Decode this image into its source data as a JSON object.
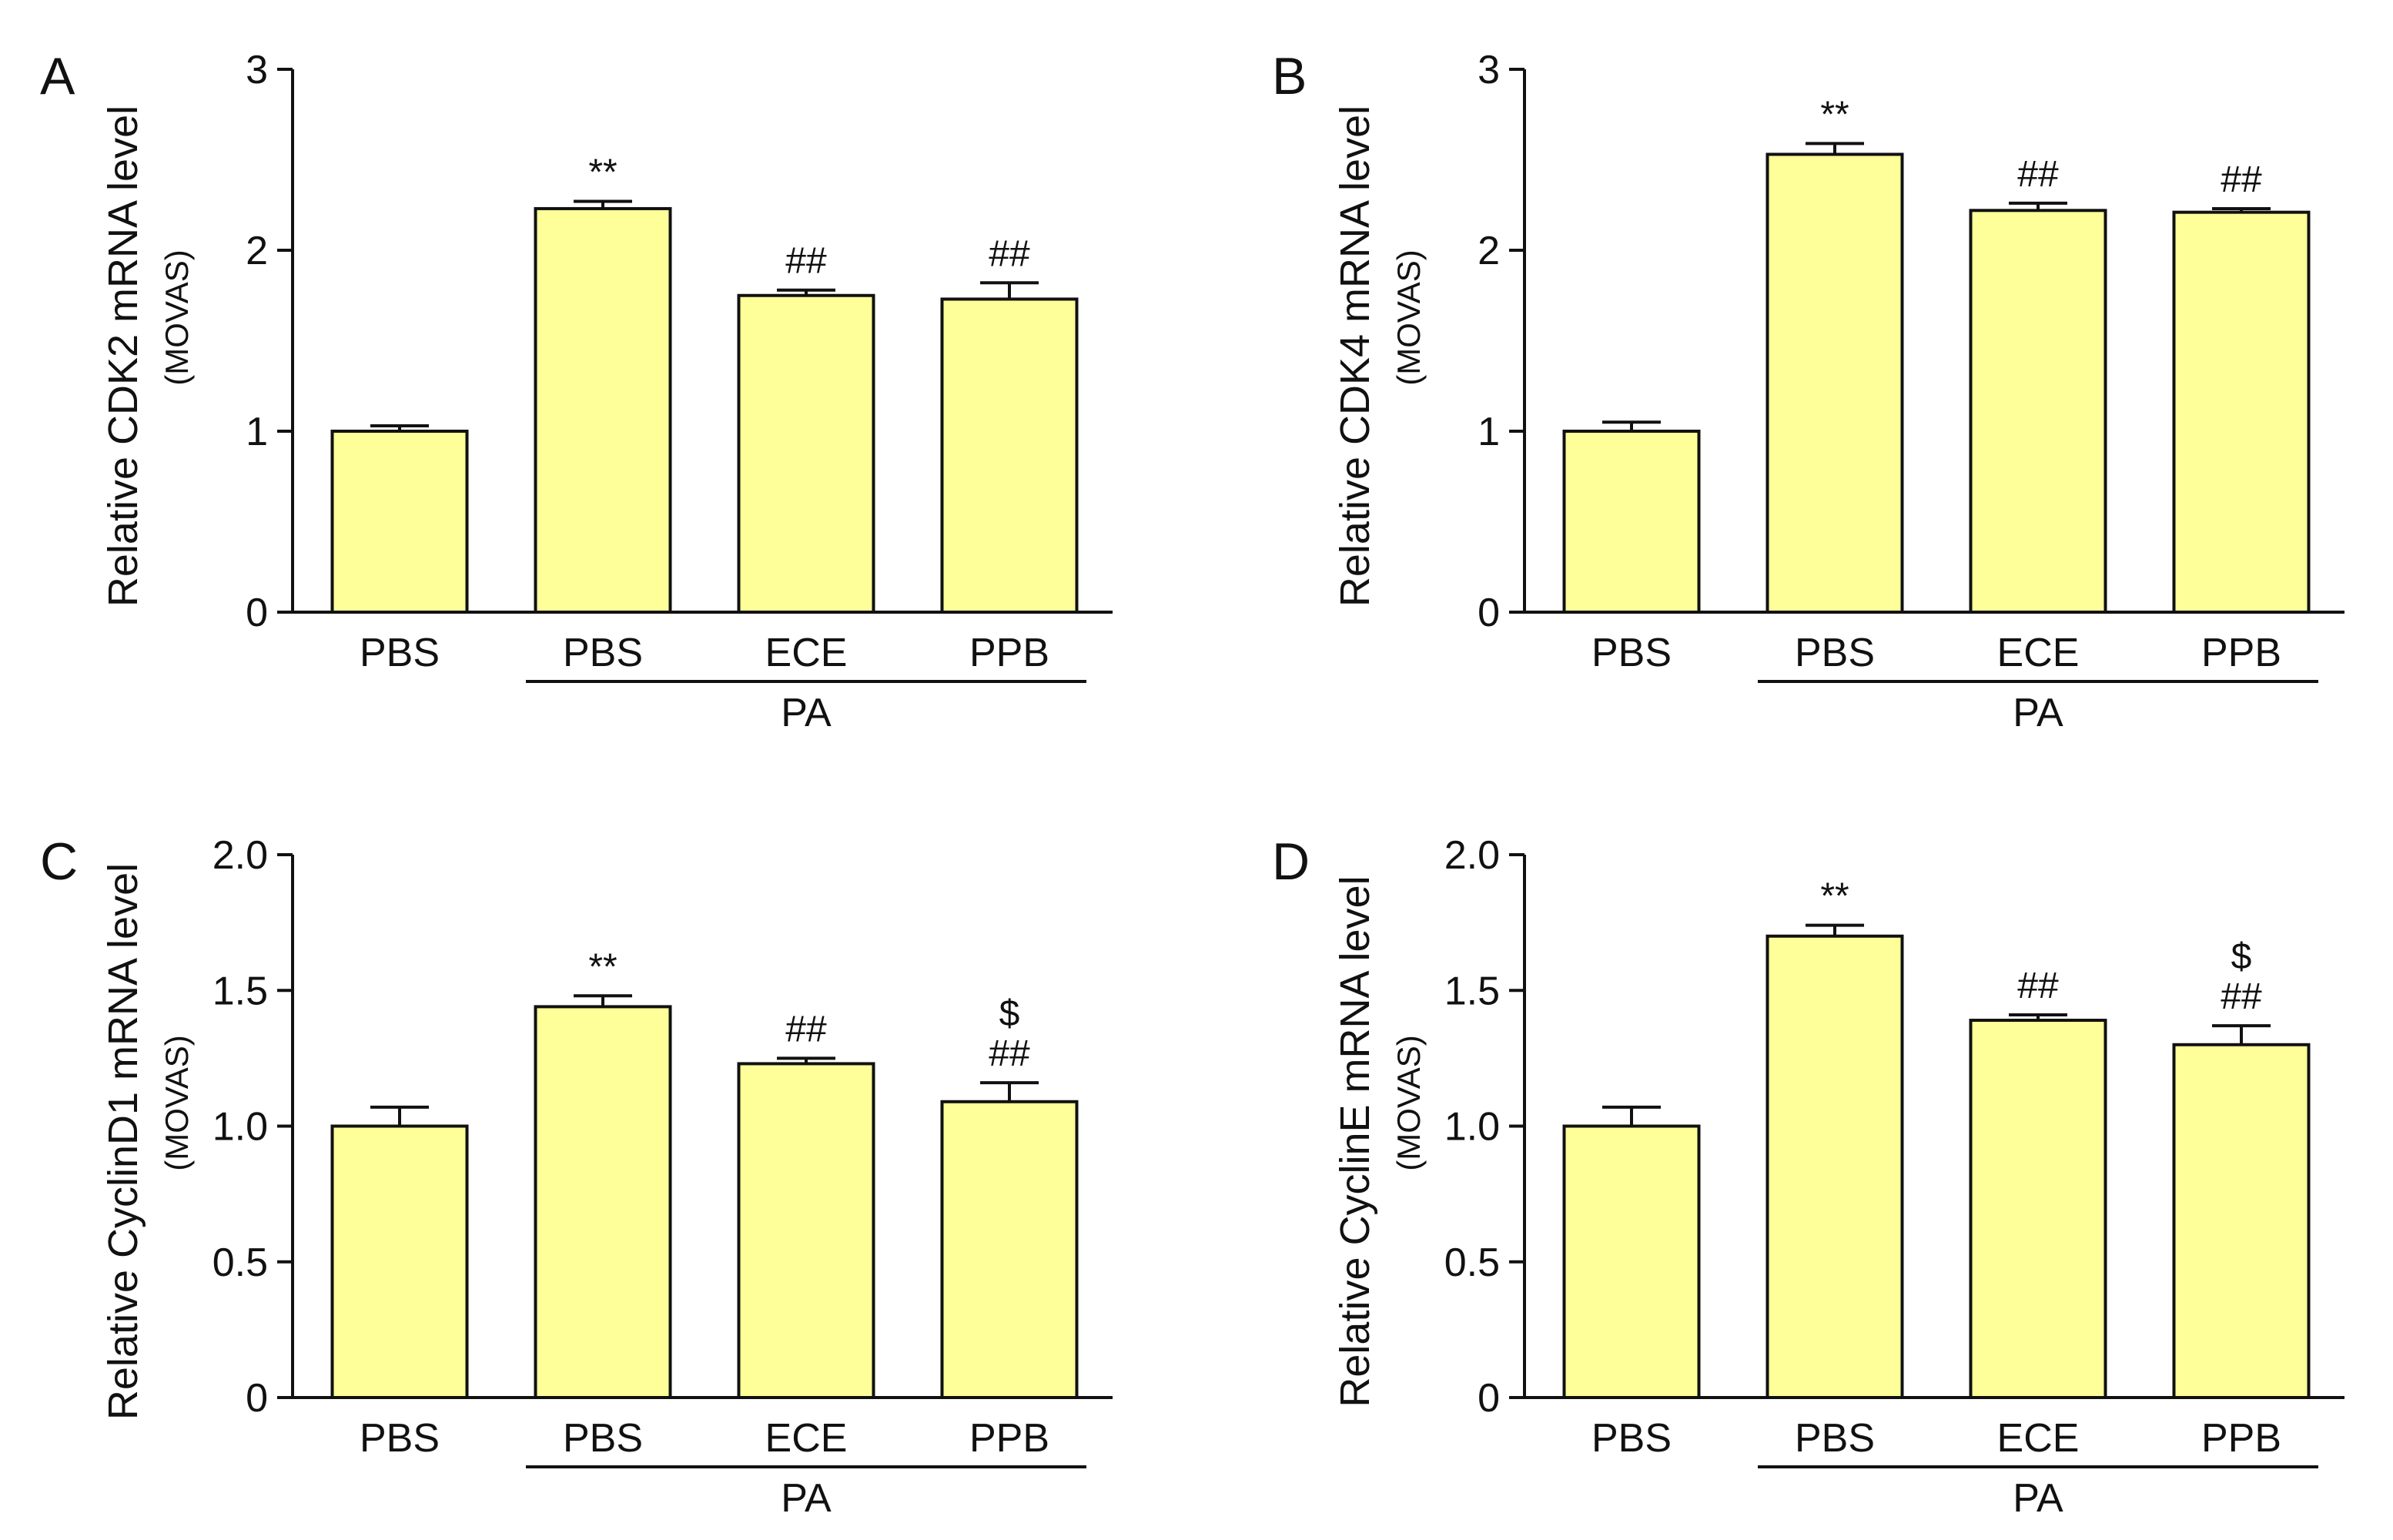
{
  "colors": {
    "bar_fill": "#ffff99",
    "bar_stroke": "#111111",
    "axis": "#111111"
  },
  "chart_data": [
    {
      "type": "bar",
      "panel": "A",
      "ylabel": "Relative CDK2 mRNA level",
      "ylabel_sub": "(MOVAS)",
      "categories": [
        "PBS",
        "PBS",
        "ECE",
        "PPB"
      ],
      "values": [
        1.0,
        2.23,
        1.75,
        1.73
      ],
      "errors": [
        0.03,
        0.04,
        0.03,
        0.09
      ],
      "annotations": [
        [],
        [
          "**"
        ],
        [
          "##"
        ],
        [
          "##"
        ]
      ],
      "group": {
        "label": "PA",
        "categories": [
          1,
          2,
          3
        ]
      },
      "ylim": [
        0,
        3
      ],
      "yticks": [
        0,
        1,
        2,
        3
      ],
      "ytick_labels": [
        "0",
        "1",
        "2",
        "3"
      ]
    },
    {
      "type": "bar",
      "panel": "B",
      "ylabel": "Relative CDK4 mRNA level",
      "ylabel_sub": "(MOVAS)",
      "categories": [
        "PBS",
        "PBS",
        "ECE",
        "PPB"
      ],
      "values": [
        1.0,
        2.53,
        2.22,
        2.21
      ],
      "errors": [
        0.05,
        0.06,
        0.04,
        0.02
      ],
      "annotations": [
        [],
        [
          "**"
        ],
        [
          "##"
        ],
        [
          "##"
        ]
      ],
      "group": {
        "label": "PA",
        "categories": [
          1,
          2,
          3
        ]
      },
      "ylim": [
        0,
        3
      ],
      "yticks": [
        0,
        1,
        2,
        3
      ],
      "ytick_labels": [
        "0",
        "1",
        "2",
        "3"
      ]
    },
    {
      "type": "bar",
      "panel": "C",
      "ylabel": "Relative CyclinD1 mRNA level",
      "ylabel_sub": "(MOVAS)",
      "categories": [
        "PBS",
        "PBS",
        "ECE",
        "PPB"
      ],
      "values": [
        1.0,
        1.44,
        1.23,
        1.09
      ],
      "errors": [
        0.07,
        0.04,
        0.02,
        0.07
      ],
      "annotations": [
        [],
        [
          "**"
        ],
        [
          "##"
        ],
        [
          "##",
          "$"
        ]
      ],
      "group": {
        "label": "PA",
        "categories": [
          1,
          2,
          3
        ]
      },
      "ylim": [
        0,
        2
      ],
      "yticks": [
        0,
        0.5,
        1,
        1.5,
        2
      ],
      "ytick_labels": [
        "0",
        "0.5",
        "1.0",
        "1.5",
        "2.0"
      ]
    },
    {
      "type": "bar",
      "panel": "D",
      "ylabel": "Relative CyclinE mRNA level",
      "ylabel_sub": "(MOVAS)",
      "categories": [
        "PBS",
        "PBS",
        "ECE",
        "PPB"
      ],
      "values": [
        1.0,
        1.7,
        1.39,
        1.3
      ],
      "errors": [
        0.07,
        0.04,
        0.02,
        0.07
      ],
      "annotations": [
        [],
        [
          "**"
        ],
        [
          "##"
        ],
        [
          "##",
          "$"
        ]
      ],
      "group": {
        "label": "PA",
        "categories": [
          1,
          2,
          3
        ]
      },
      "ylim": [
        0,
        2
      ],
      "yticks": [
        0,
        0.5,
        1,
        1.5,
        2
      ],
      "ytick_labels": [
        "0",
        "0.5",
        "1.0",
        "1.5",
        "2.0"
      ]
    }
  ]
}
